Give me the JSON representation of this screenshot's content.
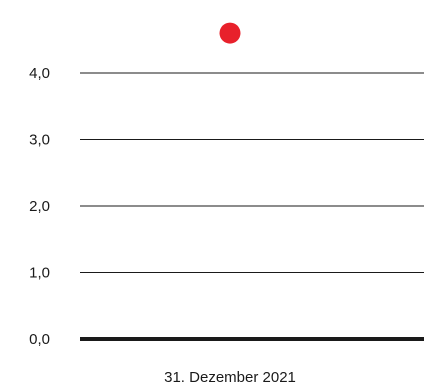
{
  "chart_data": {
    "type": "scatter",
    "title": "",
    "xlabel": "",
    "ylabel": "",
    "categories": [
      "31. Dezember 2021"
    ],
    "series": [
      {
        "values": [
          4.6
        ],
        "color": "#e8212b"
      }
    ],
    "ylim": [
      0,
      4.6
    ],
    "yticks": [
      "0,0",
      "1,0",
      "2,0",
      "3,0",
      "4,0"
    ],
    "ytick_values": [
      0,
      1,
      2,
      3,
      4
    ],
    "grid": true,
    "gridline_color": "#1a1a1a",
    "baseline_color": "#1a1a1a",
    "legend": "none"
  }
}
